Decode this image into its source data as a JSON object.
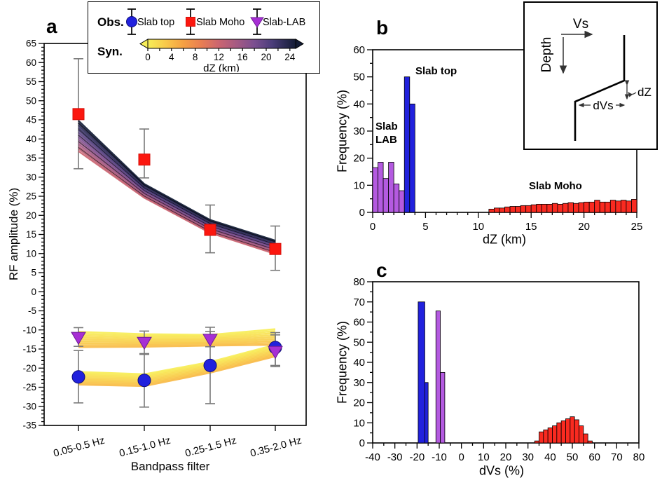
{
  "figure": {
    "panel_a_label": "a",
    "panel_b_label": "b",
    "panel_c_label": "c"
  },
  "legend": {
    "obs_label": "Obs.",
    "syn_label": "Syn.",
    "items": [
      {
        "label": "Slab top",
        "marker": "circle",
        "color": "#2121dd"
      },
      {
        "label": "Slab Moho",
        "marker": "square",
        "color": "#fb170f"
      },
      {
        "label": "Slab-LAB",
        "marker": "triangle-down",
        "color": "#a72fd4"
      }
    ],
    "colorbar": {
      "label": "dZ (km)",
      "min": 0,
      "max": 25,
      "tick_step": 2,
      "tick_labels": [
        0,
        4,
        8,
        12,
        16,
        20,
        24
      ],
      "gradient": [
        {
          "t": 0.0,
          "c": "#f7ee58"
        },
        {
          "t": 0.12,
          "c": "#f9c94a"
        },
        {
          "t": 0.24,
          "c": "#f5a043"
        },
        {
          "t": 0.36,
          "c": "#e97e52"
        },
        {
          "t": 0.48,
          "c": "#cb6570"
        },
        {
          "t": 0.6,
          "c": "#a55a83"
        },
        {
          "t": 0.72,
          "c": "#7b4f90"
        },
        {
          "t": 0.84,
          "c": "#4b3d7a"
        },
        {
          "t": 0.93,
          "c": "#2a2a52"
        },
        {
          "t": 1.0,
          "c": "#141d36"
        }
      ]
    }
  },
  "inset": {
    "vs_label": "Vs",
    "depth_label": "Depth",
    "dz_label": "dZ",
    "dvs_label": "dVs"
  },
  "chart_data": [
    {
      "id": "a",
      "type": "line",
      "xlabel": "Bandpass filter",
      "ylabel": "RF amplitude (%)",
      "ylim": [
        -35,
        65
      ],
      "ytick_step": 5,
      "ytick_minor": 1,
      "categories": [
        "0.05-0.5 Hz",
        "0.15-1.0 Hz",
        "0.25-1.5 Hz",
        "0.35-2.0 Hz"
      ],
      "series": [
        {
          "name": "Slab Moho",
          "role": "obs",
          "marker": "square",
          "color": "#fb170f",
          "edge": "#d40f08",
          "values": [
            46.5,
            34.6,
            16.2,
            11.2
          ],
          "err_lo": [
            32.2,
            29.8,
            10.2,
            5.6
          ],
          "err_hi": [
            61.0,
            42.6,
            22.7,
            17.2
          ]
        },
        {
          "name": "Slab top",
          "role": "obs",
          "marker": "circle",
          "color": "#2121dd",
          "edge": "#0d0d7a",
          "values": [
            -22.3,
            -23.2,
            -19.3,
            -14.6
          ],
          "err_lo": [
            -29.1,
            -30.2,
            -29.3,
            -19.3
          ],
          "err_hi": [
            -15.4,
            -16.4,
            -10.4,
            -10.7
          ]
        },
        {
          "name": "Slab-LAB",
          "role": "obs",
          "marker": "triangle-down",
          "color": "#a72fd4",
          "edge": "#6e1d95",
          "values": [
            -11.9,
            -13.2,
            -12.4,
            -15.6
          ],
          "err_lo": [
            -14.3,
            -16.2,
            -14.4,
            -19.6
          ],
          "err_hi": [
            -9.4,
            -10.3,
            -9.3,
            -11.3
          ]
        }
      ],
      "syn_bundles": [
        {
          "name": "Slab Moho synthetics",
          "dz_min": 12,
          "dz_max": 25,
          "strands": 14,
          "dz0_edge": "lo",
          "edge_lo": [
            36.8,
            24.6,
            15.4,
            9.9
          ],
          "edge_hi": [
            44.8,
            28.2,
            18.8,
            13.4
          ],
          "hatch": true
        },
        {
          "name": "Slab top synthetics",
          "dz_min": 0,
          "dz_max": 4,
          "strands": 9,
          "dz0_edge": "hi",
          "edge_lo": [
            -24.3,
            -24.7,
            -21.2,
            -16.9
          ],
          "edge_hi": [
            -21.0,
            -21.6,
            -18.4,
            -13.9
          ],
          "hatch": false
        },
        {
          "name": "Slab-LAB synthetics",
          "dz_min": 0,
          "dz_max": 4,
          "strands": 9,
          "dz0_edge": "hi",
          "edge_lo": [
            -14.5,
            -14.4,
            -14.1,
            -13.9
          ],
          "edge_hi": [
            -10.5,
            -11.1,
            -11.3,
            -9.8
          ],
          "hatch": false
        }
      ]
    },
    {
      "id": "b",
      "type": "bar",
      "xlabel": "dZ (km)",
      "ylabel": "Frequency (%)",
      "xlim": [
        0,
        25
      ],
      "ylim": [
        0,
        60
      ],
      "xtick_step": 5,
      "xtick_minor": 1,
      "ytick_step": 10,
      "ytick_minor": 5,
      "series": [
        {
          "name": "Slab LAB",
          "color": "#b45ae0",
          "x0": 0,
          "bin_w": 0.5,
          "heights": [
            16.5,
            18.5,
            12.5,
            18.5,
            10.5,
            8
          ]
        },
        {
          "name": "Slab top",
          "color": "#2121dd",
          "x0": 3,
          "bin_w": 0.5,
          "heights": [
            50,
            40
          ]
        },
        {
          "name": "Slab Moho",
          "color": "#f92a20",
          "x0": 11,
          "bin_w": 0.5,
          "heights": [
            1.2,
            1.6,
            1.6,
            2.0,
            2.2,
            2.2,
            2.5,
            2.5,
            2.8,
            3.0,
            3.0,
            3.0,
            3.3,
            3.0,
            3.3,
            3.6,
            3.3,
            3.6,
            3.8,
            3.8,
            4.5,
            3.8,
            3.8,
            4.5,
            4.2,
            4.5,
            4.2,
            4.8
          ]
        }
      ],
      "annotations": [
        {
          "text": "Slab top"
        },
        {
          "text": "Slab\nLAB"
        },
        {
          "text": "Slab Moho"
        }
      ]
    },
    {
      "id": "c",
      "type": "bar",
      "xlabel": "dVs (%)",
      "ylabel": "Frequency (%)",
      "xlim": [
        -40,
        80
      ],
      "ylim": [
        0,
        80
      ],
      "xtick_step": 10,
      "xtick_minor": 5,
      "ytick_step": 10,
      "ytick_minor": 5,
      "series": [
        {
          "name": "Slab top",
          "color": "#2121dd",
          "bars": [
            {
              "x": -19.5,
              "w": 3,
              "h": 70
            },
            {
              "x": -16.5,
              "w": 1.5,
              "h": 30
            }
          ]
        },
        {
          "name": "Slab LAB",
          "color": "#b45ae0",
          "bars": [
            {
              "x": -11.5,
              "w": 2,
              "h": 65.5
            },
            {
              "x": -9.5,
              "w": 2,
              "h": 35
            }
          ]
        },
        {
          "name": "Slab Moho",
          "color": "#f92a20",
          "x0": 33,
          "bin_w": 2,
          "heights": [
            1,
            5.5,
            6.5,
            7.5,
            8.5,
            10,
            11,
            12,
            13,
            11.5,
            8.5,
            4.5,
            1
          ]
        }
      ]
    }
  ]
}
